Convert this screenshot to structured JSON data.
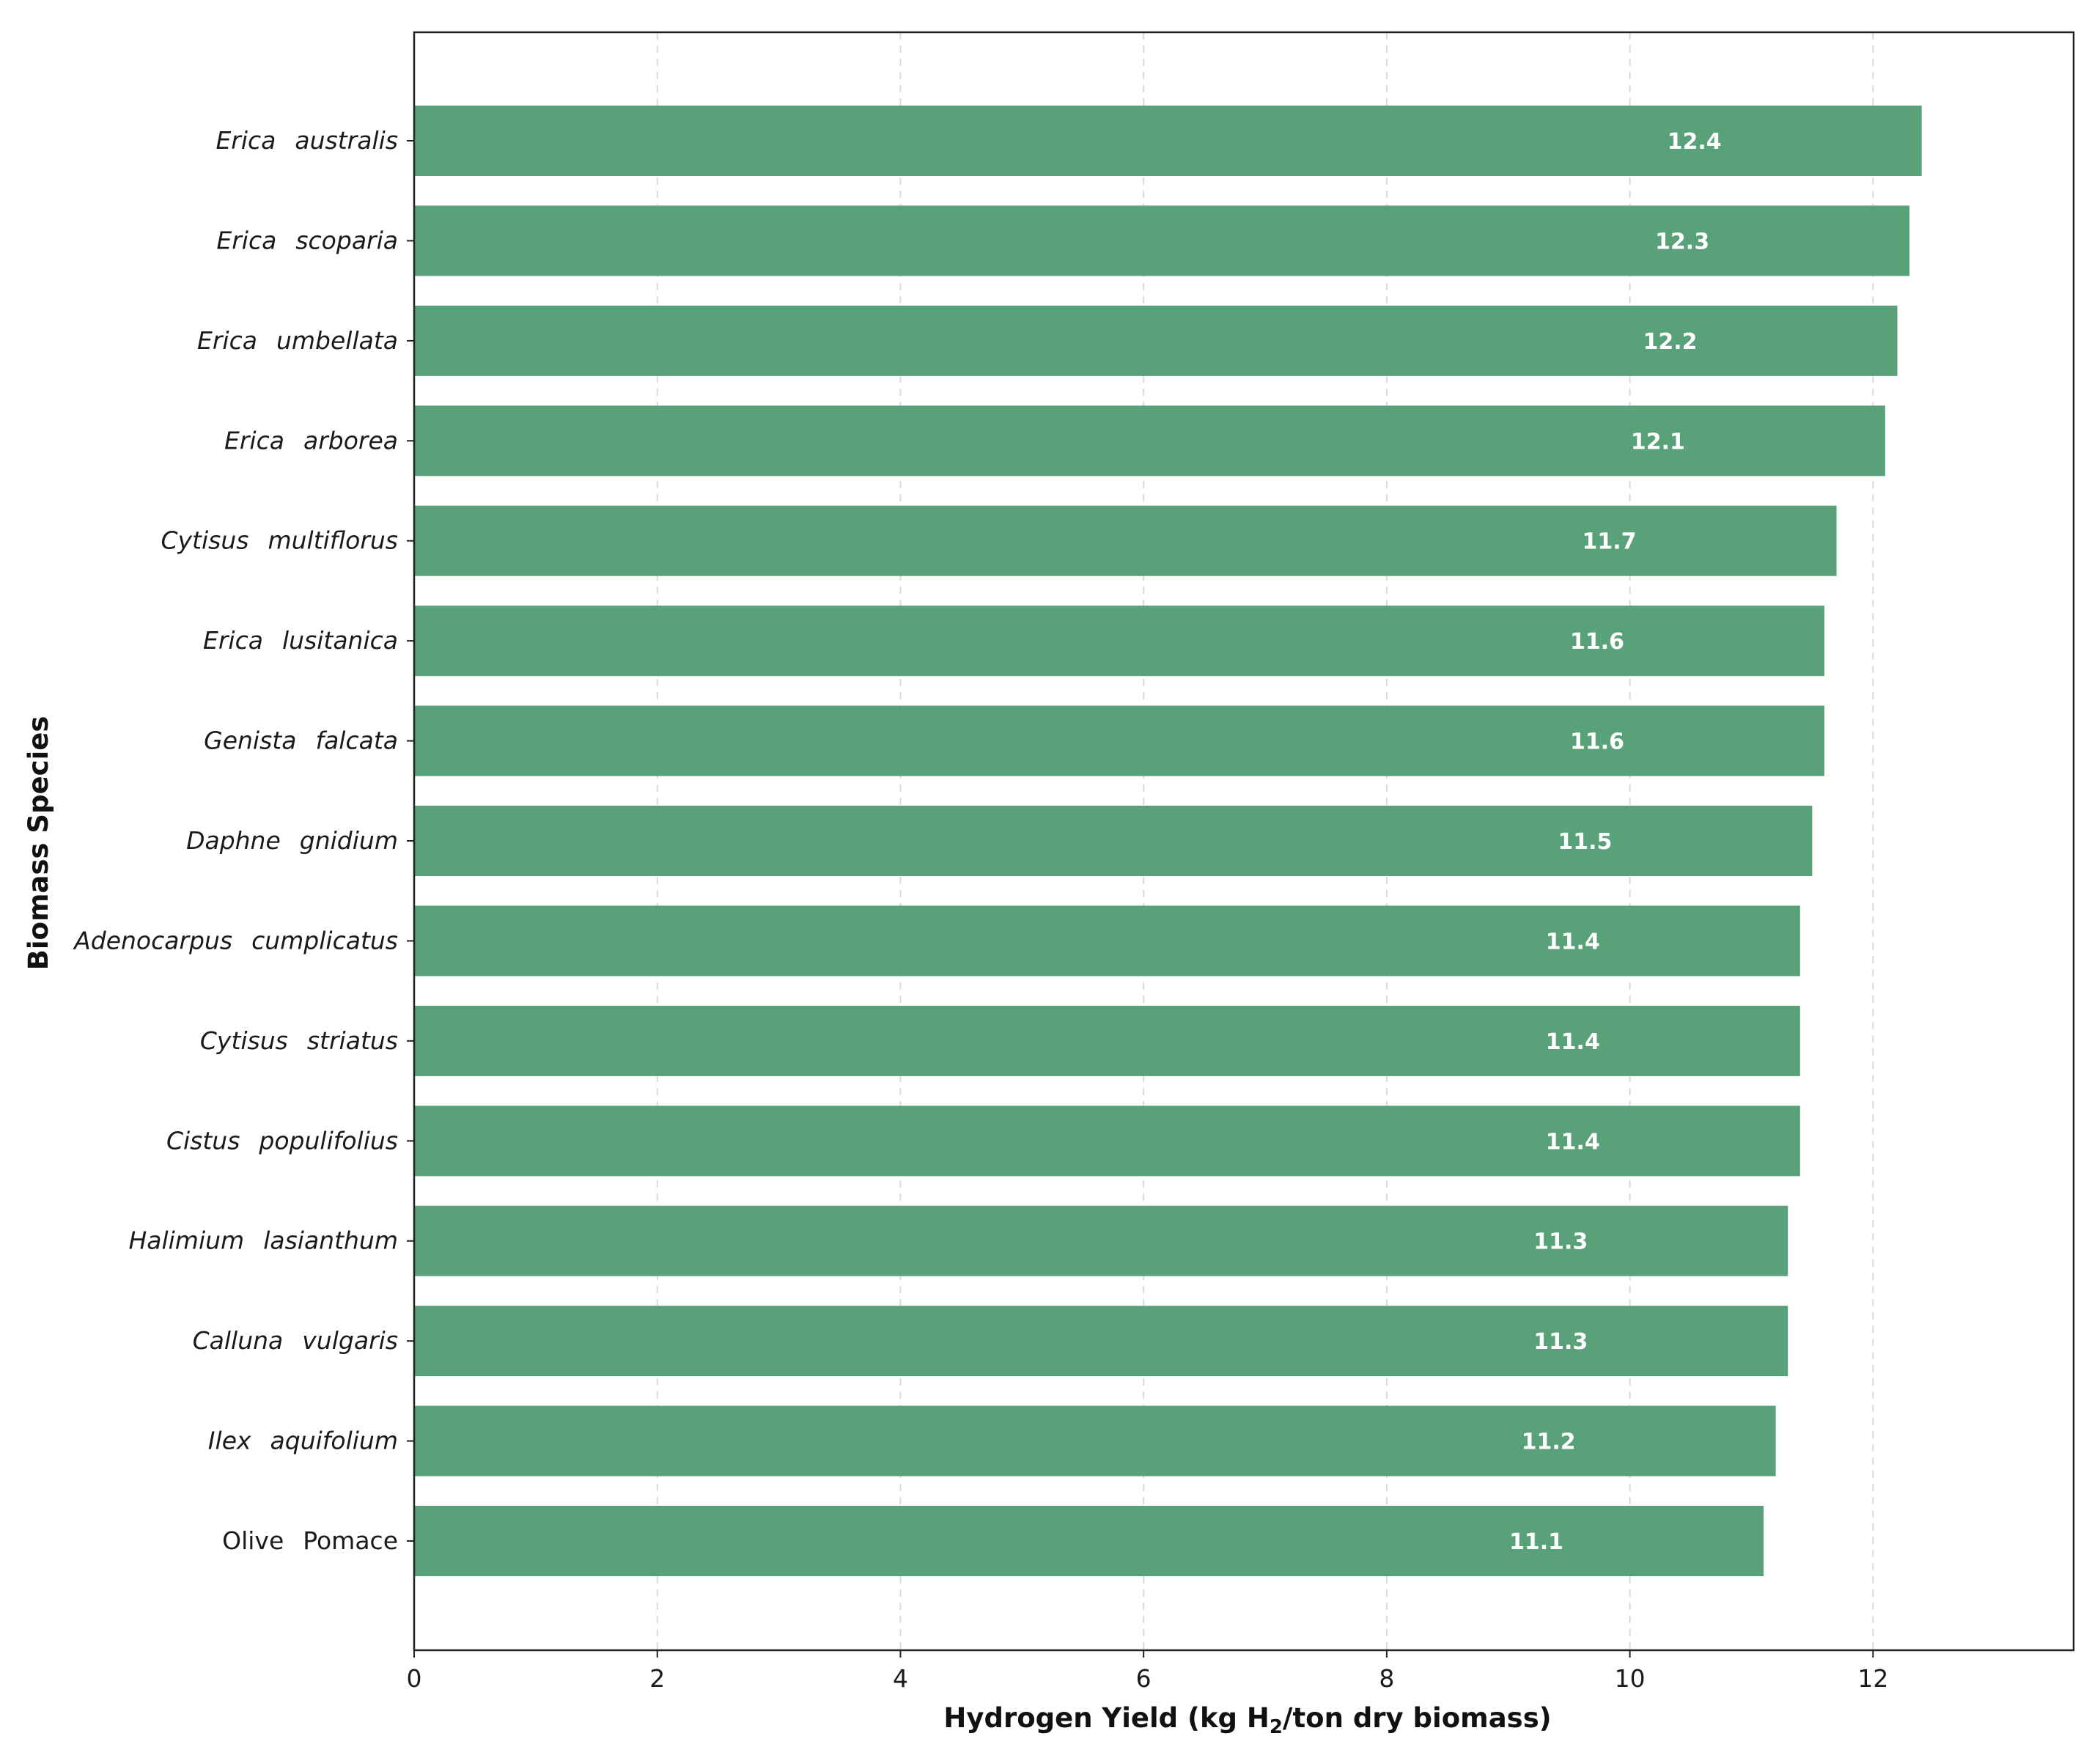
{
  "chart_data": {
    "type": "bar",
    "orientation": "horizontal",
    "title": "",
    "xlabel_prefix": "Hydrogen Yield (kg H",
    "xlabel_sub": "2",
    "xlabel_suffix": "/ton dry biomass)",
    "ylabel": "Biomass Species",
    "xlim": [
      0,
      13.65
    ],
    "xticks": [
      0,
      2,
      4,
      6,
      8,
      10,
      12
    ],
    "grid": "x-dashed",
    "bar_color": "#59a279",
    "categories": [
      {
        "genus": "Erica",
        "species": "australis",
        "italic": true
      },
      {
        "genus": "Erica",
        "species": "scoparia",
        "italic": true
      },
      {
        "genus": "Erica",
        "species": "umbellata",
        "italic": true
      },
      {
        "genus": "Erica",
        "species": "arborea",
        "italic": true
      },
      {
        "genus": "Cytisus",
        "species": "multiflorus",
        "italic": true
      },
      {
        "genus": "Erica",
        "species": "lusitanica",
        "italic": true
      },
      {
        "genus": "Genista",
        "species": "falcata",
        "italic": true
      },
      {
        "genus": "Daphne",
        "species": "gnidium",
        "italic": true
      },
      {
        "genus": "Adenocarpus",
        "species": "cumplicatus",
        "italic": true
      },
      {
        "genus": "Cytisus",
        "species": "striatus",
        "italic": true
      },
      {
        "genus": "Cistus",
        "species": "populifolius",
        "italic": true
      },
      {
        "genus": "Halimium",
        "species": "lasianthum",
        "italic": true
      },
      {
        "genus": "Calluna",
        "species": "vulgaris",
        "italic": true
      },
      {
        "genus": "Ilex",
        "species": "aquifolium",
        "italic": true
      },
      {
        "genus": "Olive",
        "species": "Pomace",
        "italic": false
      }
    ],
    "values": [
      12.4,
      12.3,
      12.2,
      12.1,
      11.7,
      11.6,
      11.6,
      11.5,
      11.4,
      11.4,
      11.4,
      11.3,
      11.3,
      11.2,
      11.1
    ]
  }
}
